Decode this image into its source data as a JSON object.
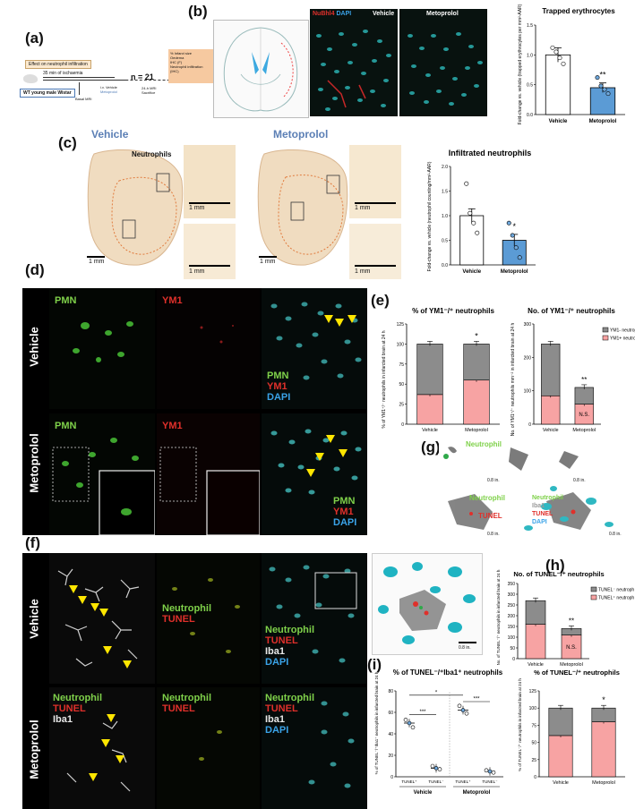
{
  "panel_labels": {
    "a": "(a)",
    "b": "(b)",
    "c": "(c)",
    "d": "(d)",
    "e": "(e)",
    "f": "(f)",
    "g": "(g)",
    "h": "(h)",
    "i": "(i)"
  },
  "panel_a": {
    "effect": "Effect on neutrophil infiltration",
    "ischaemia": "35 min of ischaemia",
    "n": "n = 21",
    "animal": "WT young male Wistar",
    "treat_iv": "i.v.",
    "treat_vehicle": "Vehicle",
    "treat_metoprolol": "Metoprolol",
    "basal_mri": "Basal MRI",
    "mri_24h": "24-h MRI",
    "sacrifice": "Sacrifice",
    "box_lines": [
      "% Infarct size",
      "Oedema",
      "IHC (F)",
      "Neutrophil infiltration (IHC)"
    ]
  },
  "panel_b": {
    "stain_nubbia": "NuBhl4",
    "stain_dapi": "DAPI",
    "vehicle": "Vehicle",
    "metoprolol": "Metoprolol"
  },
  "panel_c": {
    "vehicle": "Vehicle",
    "metoprolol": "Metoprolol",
    "neutrophils": "Neutrophils",
    "scale_1mm": "1 mm"
  },
  "panel_d": {
    "row_vehicle": "Vehicle",
    "row_metoprolol": "Metoprolol",
    "pmn": "PMN",
    "ym1": "YM1",
    "dapi": "DAPI",
    "scale": "20 μm"
  },
  "panel_f": {
    "row_vehicle": "Vehicle",
    "row_metoprolol": "Metoprolol",
    "neutrophil": "Neutrophil",
    "tunel": "TUNEL",
    "iba1": "Iba1",
    "dapi": "DAPI",
    "scale_3d": "0.8 in."
  },
  "panel_g": {
    "neutrophil": "Neutrophil",
    "tunel": "TUNEL",
    "dapi": "DAPI",
    "iba1": "Iba1",
    "scale_3d": "0.8 in."
  },
  "chart_data": [
    {
      "type": "bar",
      "panel": "b",
      "title": "Trapped erythrocytes",
      "ylabel": "Fold-change vs. vehicle (trapped erythrocytes per mm²-AAR)",
      "categories": [
        "Vehicle",
        "Metoprolol"
      ],
      "values": [
        1.0,
        0.45
      ],
      "errors": [
        0.12,
        0.08
      ],
      "points": [
        [
          1.12,
          1.05,
          0.95,
          0.85
        ],
        [
          0.62,
          0.48,
          0.42,
          0.35
        ]
      ],
      "ylim": [
        0,
        1.5
      ],
      "yticks": [
        "0.0",
        "0.5",
        "1.0",
        "1.5"
      ],
      "annotation": "**",
      "colors": [
        "#ffffff",
        "#5b9bd5"
      ]
    },
    {
      "type": "bar",
      "panel": "c",
      "title": "Infiltrated neutrophils",
      "ylabel": "Fold-change vs. vehicle (neutrophil counting/mm²-AAR)",
      "categories": [
        "Vehicle",
        "Metoprolol"
      ],
      "values": [
        1.0,
        0.5
      ],
      "errors": [
        0.14,
        0.12
      ],
      "points": [
        [
          1.65,
          1.05,
          0.85,
          0.65
        ],
        [
          0.85,
          0.6,
          0.35,
          0.15
        ]
      ],
      "ylim": [
        0,
        2.0
      ],
      "yticks": [
        "0.0",
        "0.5",
        "1.0",
        "1.5",
        "2.0"
      ],
      "annotation": "*",
      "colors": [
        "#ffffff",
        "#5b9bd5"
      ]
    },
    {
      "type": "bar",
      "panel": "e-left",
      "title": "% of YM1⁻/⁺ neutrophils",
      "ylabel": "% of YM1⁺/⁻ neutrophils in infarcted brain at 24 h",
      "categories": [
        "Vehicle",
        "Metoprolol"
      ],
      "series": [
        {
          "name": "YM1+ neutrophils",
          "values": [
            37,
            55
          ]
        },
        {
          "name": "YM1- neutrophils",
          "values": [
            63,
            45
          ]
        }
      ],
      "ylim": [
        0,
        125
      ],
      "yticks": [
        "0",
        "25",
        "50",
        "75",
        "100",
        "125"
      ],
      "annotation": "*"
    },
    {
      "type": "bar",
      "panel": "e-right",
      "title": "No. of YM1⁻/⁺ neutrophils",
      "ylabel": "No. of YM1⁺/⁻ neutrophils mm⁻² in infarcted brain at 24 h",
      "categories": [
        "Vehicle",
        "Metoprolol"
      ],
      "series": [
        {
          "name": "YM1+ neutrophils",
          "values": [
            85,
            60
          ]
        },
        {
          "name": "YM1- neutrophils",
          "values": [
            155,
            50
          ]
        }
      ],
      "ylim": [
        0,
        300
      ],
      "yticks": [
        "0",
        "100",
        "200",
        "300"
      ],
      "annotations": [
        "**",
        "N.S."
      ],
      "legend": [
        "YM1- neutrophils",
        "YM1+ neutrophils"
      ]
    },
    {
      "type": "bar",
      "panel": "h",
      "title": "No. of TUNEL⁻/⁺ neutrophils",
      "ylabel": "No. of TUNEL⁻/⁺ neutrophils in infarcted brain at 24 h",
      "categories": [
        "Vehicle",
        "Metoprolol"
      ],
      "series": [
        {
          "name": "TUNEL+ neutrophils",
          "values": [
            160,
            110
          ]
        },
        {
          "name": "TUNEL- neutrophils",
          "values": [
            110,
            30
          ]
        }
      ],
      "ylim": [
        0,
        350
      ],
      "yticks": [
        "0",
        "50",
        "100",
        "150",
        "200",
        "250",
        "300",
        "350"
      ],
      "annotations": [
        "**",
        "N.S."
      ],
      "legend": [
        "TUNEL⁻ neutrophils",
        "TUNEL⁺ neutrophils"
      ]
    },
    {
      "type": "scatter",
      "panel": "i-left",
      "title": "% of TUNEL⁻/⁺Iba1⁺ neutrophils",
      "ylabel": "% of TUNEL⁻/⁺Iba1⁺ neutrophils in infarcted brain at 24 h",
      "categories": [
        "TUNEL⁺",
        "TUNEL⁻",
        "TUNEL⁺",
        "TUNEL⁻"
      ],
      "groups": [
        "Vehicle",
        "Metoprolol"
      ],
      "values": [
        50,
        8,
        62,
        5
      ],
      "points": [
        [
          53,
          50,
          46
        ],
        [
          10,
          8,
          7
        ],
        [
          66,
          62,
          59
        ],
        [
          6,
          5,
          4
        ]
      ],
      "ylim": [
        0,
        80
      ],
      "yticks": [
        "0",
        "20",
        "40",
        "60",
        "80"
      ],
      "annotations": [
        "***",
        "***",
        "*"
      ]
    },
    {
      "type": "bar",
      "panel": "i-right",
      "title": "% of TUNEL⁻/⁺ neutrophils",
      "ylabel": "% of TUNEL⁻/⁺ neutrophils in infarcted brain at 24 h",
      "categories": [
        "Vehicle",
        "Metoprolol"
      ],
      "series": [
        {
          "name": "TUNEL+",
          "values": [
            60,
            80
          ]
        },
        {
          "name": "TUNEL-",
          "values": [
            40,
            20
          ]
        }
      ],
      "ylim": [
        0,
        125
      ],
      "yticks": [
        "0",
        "25",
        "50",
        "75",
        "100",
        "125"
      ],
      "annotation": "*"
    }
  ]
}
